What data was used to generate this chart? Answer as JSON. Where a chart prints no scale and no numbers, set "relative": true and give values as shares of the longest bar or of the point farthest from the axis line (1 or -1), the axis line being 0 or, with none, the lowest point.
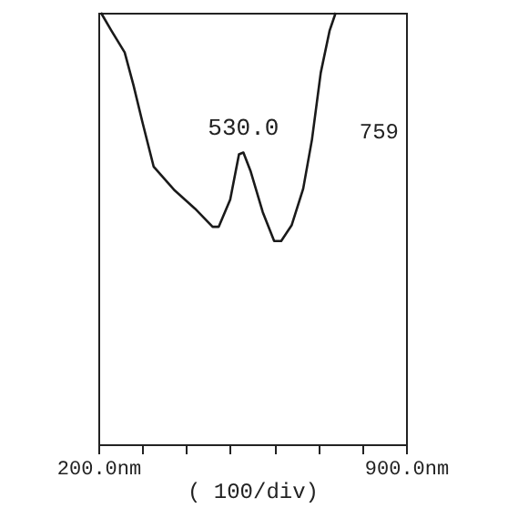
{
  "chart_data": {
    "type": "line",
    "relative": true,
    "xlabel": "( 100/div)",
    "x": [
      206,
      230,
      260,
      280,
      300,
      326,
      374,
      420,
      460,
      474,
      500,
      520,
      530,
      546,
      574,
      600,
      616,
      640,
      666,
      686,
      706,
      726,
      740
    ],
    "series": [
      {
        "color": "#1a1a1a",
        "values": [
          1.0,
          0.958,
          0.908,
          0.832,
          0.748,
          0.643,
          0.588,
          0.546,
          0.504,
          0.504,
          0.567,
          0.672,
          0.676,
          0.634,
          0.538,
          0.471,
          0.471,
          0.508,
          0.592,
          0.706,
          0.861,
          0.958,
          1.0
        ]
      }
    ],
    "xlim": [
      200,
      900
    ],
    "xticks": [
      {
        "value": 200,
        "label": "200.0nm"
      },
      {
        "value": 300,
        "label": null
      },
      {
        "value": 400,
        "label": null
      },
      {
        "value": 500,
        "label": null
      },
      {
        "value": 600,
        "label": null
      },
      {
        "value": 700,
        "label": null
      },
      {
        "value": 800,
        "label": null
      },
      {
        "value": 900,
        "label": "900.0nm"
      }
    ],
    "annotations": [
      {
        "text": "530.0",
        "x": 530,
        "y": 0.676
      },
      "759"
    ],
    "grid": false,
    "marker": "none",
    "line_style": "solid"
  }
}
